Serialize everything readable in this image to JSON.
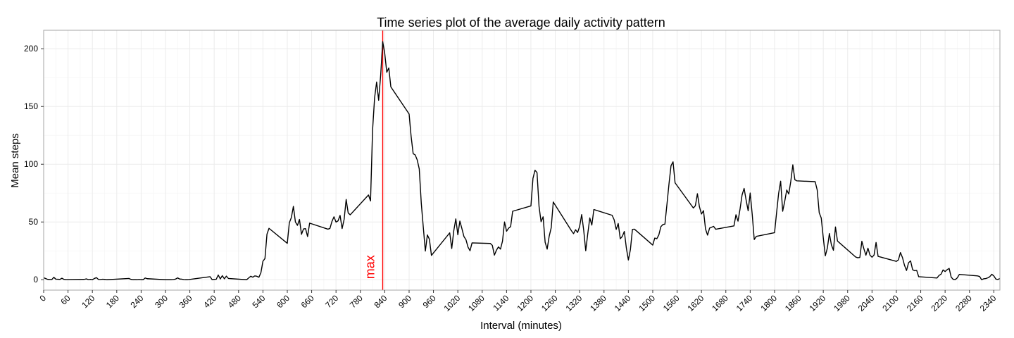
{
  "chart_data": {
    "type": "line",
    "title": "Time series plot of the average daily activity pattern",
    "xlabel": "Interval (minutes)",
    "ylabel": "Mean steps",
    "xlim": [
      0,
      2355
    ],
    "ylim": [
      -9,
      216
    ],
    "xticks": [
      0,
      60,
      120,
      180,
      240,
      300,
      360,
      420,
      480,
      540,
      600,
      660,
      720,
      780,
      840,
      900,
      960,
      1020,
      1080,
      1140,
      1200,
      1260,
      1320,
      1380,
      1440,
      1500,
      1560,
      1620,
      1680,
      1740,
      1800,
      1860,
      1920,
      1980,
      2040,
      2100,
      2160,
      2220,
      2280,
      2340
    ],
    "yticks": [
      0,
      50,
      100,
      150,
      200
    ],
    "grid": true,
    "series": [
      {
        "points": [
          [
            0,
            1.7
          ],
          [
            10,
            0.3
          ],
          [
            20,
            0.1
          ],
          [
            25,
            2.1
          ],
          [
            30,
            0.5
          ],
          [
            40,
            0.3
          ],
          [
            45,
            1.3
          ],
          [
            50,
            0.3
          ],
          [
            55,
            0.1
          ],
          [
            100,
            0.3
          ],
          [
            105,
            0.7
          ],
          [
            110,
            0.1
          ],
          [
            115,
            0.3
          ],
          [
            120,
            0
          ],
          [
            125,
            1.1
          ],
          [
            130,
            1.8
          ],
          [
            135,
            0.2
          ],
          [
            140,
            0.2
          ],
          [
            145,
            0.4
          ],
          [
            150,
            0.3
          ],
          [
            155,
            0
          ],
          [
            210,
            1.1
          ],
          [
            215,
            0.3
          ],
          [
            220,
            0
          ],
          [
            225,
            0.1
          ],
          [
            230,
            0
          ],
          [
            235,
            0.2
          ],
          [
            240,
            0
          ],
          [
            245,
            0
          ],
          [
            250,
            1.5
          ],
          [
            255,
            0.9
          ],
          [
            300,
            0
          ],
          [
            305,
            0
          ],
          [
            310,
            0
          ],
          [
            315,
            0
          ],
          [
            320,
            0.2
          ],
          [
            325,
            0.6
          ],
          [
            330,
            1.6
          ],
          [
            335,
            0.6
          ],
          [
            340,
            0.5
          ],
          [
            345,
            0.1
          ],
          [
            350,
            0
          ],
          [
            355,
            0
          ],
          [
            410,
            2.6
          ],
          [
            415,
            0
          ],
          [
            420,
            0.3
          ],
          [
            425,
            0.4
          ],
          [
            430,
            4.1
          ],
          [
            435,
            0.7
          ],
          [
            440,
            3.5
          ],
          [
            445,
            0.8
          ],
          [
            450,
            3.1
          ],
          [
            455,
            1.1
          ],
          [
            500,
            0
          ],
          [
            505,
            1.6
          ],
          [
            510,
            3
          ],
          [
            515,
            2.2
          ],
          [
            520,
            3.3
          ],
          [
            525,
            3
          ],
          [
            530,
            2.1
          ],
          [
            535,
            6.1
          ],
          [
            540,
            16
          ],
          [
            545,
            18.3
          ],
          [
            550,
            39.5
          ],
          [
            555,
            44.5
          ],
          [
            600,
            31.5
          ],
          [
            605,
            49.3
          ],
          [
            610,
            53.8
          ],
          [
            615,
            63.5
          ],
          [
            620,
            50
          ],
          [
            625,
            47.1
          ],
          [
            630,
            52.2
          ],
          [
            635,
            39.3
          ],
          [
            640,
            44
          ],
          [
            645,
            44.2
          ],
          [
            650,
            37.4
          ],
          [
            655,
            49
          ],
          [
            700,
            43.8
          ],
          [
            705,
            44.4
          ],
          [
            710,
            50.5
          ],
          [
            715,
            54.5
          ],
          [
            720,
            49.9
          ],
          [
            725,
            51
          ],
          [
            730,
            55.7
          ],
          [
            735,
            44.3
          ],
          [
            740,
            52.3
          ],
          [
            745,
            69.5
          ],
          [
            750,
            57.8
          ],
          [
            755,
            56.2
          ],
          [
            800,
            73.4
          ],
          [
            805,
            68.2
          ],
          [
            810,
            129.4
          ],
          [
            815,
            157.5
          ],
          [
            820,
            171.2
          ],
          [
            825,
            155.4
          ],
          [
            830,
            177.3
          ],
          [
            835,
            206.2
          ],
          [
            840,
            195.9
          ],
          [
            845,
            179.6
          ],
          [
            850,
            183.4
          ],
          [
            855,
            167
          ],
          [
            900,
            143.5
          ],
          [
            905,
            124
          ],
          [
            910,
            109.1
          ],
          [
            915,
            108.1
          ],
          [
            920,
            103.7
          ],
          [
            925,
            95.9
          ],
          [
            930,
            66.2
          ],
          [
            935,
            45.2
          ],
          [
            940,
            24.8
          ],
          [
            945,
            38.8
          ],
          [
            950,
            35
          ],
          [
            955,
            21.1
          ],
          [
            1000,
            40.6
          ],
          [
            1005,
            27
          ],
          [
            1010,
            42.4
          ],
          [
            1015,
            52.7
          ],
          [
            1020,
            38.9
          ],
          [
            1025,
            50.8
          ],
          [
            1030,
            44.3
          ],
          [
            1035,
            37.4
          ],
          [
            1040,
            34.7
          ],
          [
            1045,
            28.3
          ],
          [
            1050,
            25.1
          ],
          [
            1055,
            31.9
          ],
          [
            1100,
            31.4
          ],
          [
            1105,
            29.7
          ],
          [
            1110,
            21.3
          ],
          [
            1115,
            25.5
          ],
          [
            1120,
            28.4
          ],
          [
            1125,
            26.5
          ],
          [
            1130,
            33.4
          ],
          [
            1135,
            50
          ],
          [
            1140,
            42
          ],
          [
            1145,
            44.6
          ],
          [
            1150,
            46
          ],
          [
            1155,
            59.3
          ],
          [
            1200,
            63.9
          ],
          [
            1205,
            87.7
          ],
          [
            1210,
            94.8
          ],
          [
            1215,
            92.8
          ],
          [
            1220,
            63.4
          ],
          [
            1225,
            50.2
          ],
          [
            1230,
            54.5
          ],
          [
            1235,
            32.4
          ],
          [
            1240,
            26.5
          ],
          [
            1245,
            37.7
          ],
          [
            1250,
            45.1
          ],
          [
            1255,
            67.3
          ],
          [
            1300,
            42.3
          ],
          [
            1305,
            39.9
          ],
          [
            1310,
            43.3
          ],
          [
            1315,
            40.9
          ],
          [
            1320,
            46.2
          ],
          [
            1325,
            56.4
          ],
          [
            1330,
            42.8
          ],
          [
            1335,
            25.1
          ],
          [
            1340,
            39.9
          ],
          [
            1345,
            53.5
          ],
          [
            1350,
            47.3
          ],
          [
            1355,
            60.8
          ],
          [
            1400,
            55.8
          ],
          [
            1405,
            51.9
          ],
          [
            1410,
            43.6
          ],
          [
            1415,
            48.7
          ],
          [
            1420,
            35.5
          ],
          [
            1425,
            37.5
          ],
          [
            1430,
            41.8
          ],
          [
            1435,
            27.5
          ],
          [
            1440,
            17.1
          ],
          [
            1445,
            26.1
          ],
          [
            1450,
            43.6
          ],
          [
            1455,
            43.8
          ],
          [
            1500,
            30
          ],
          [
            1505,
            36.1
          ],
          [
            1510,
            35.5
          ],
          [
            1515,
            38.8
          ],
          [
            1520,
            45.9
          ],
          [
            1525,
            47.8
          ],
          [
            1530,
            48.1
          ],
          [
            1535,
            65.3
          ],
          [
            1540,
            82.9
          ],
          [
            1545,
            98.7
          ],
          [
            1550,
            102.1
          ],
          [
            1555,
            83.9
          ],
          [
            1600,
            62.1
          ],
          [
            1605,
            64.1
          ],
          [
            1610,
            74.5
          ],
          [
            1615,
            63.2
          ],
          [
            1620,
            56.9
          ],
          [
            1625,
            59.8
          ],
          [
            1630,
            43.9
          ],
          [
            1635,
            38.6
          ],
          [
            1640,
            44.7
          ],
          [
            1645,
            45.5
          ],
          [
            1650,
            46.2
          ],
          [
            1655,
            43.7
          ],
          [
            1700,
            46.6
          ],
          [
            1705,
            56.3
          ],
          [
            1710,
            50.7
          ],
          [
            1715,
            61.2
          ],
          [
            1720,
            73.4
          ],
          [
            1725,
            79.1
          ],
          [
            1730,
            68.9
          ],
          [
            1735,
            59.7
          ],
          [
            1740,
            75.1
          ],
          [
            1745,
            56.5
          ],
          [
            1750,
            34.8
          ],
          [
            1755,
            37.5
          ],
          [
            1800,
            40.7
          ],
          [
            1805,
            58
          ],
          [
            1810,
            74.7
          ],
          [
            1815,
            85.3
          ],
          [
            1820,
            59.3
          ],
          [
            1825,
            67.8
          ],
          [
            1830,
            77.7
          ],
          [
            1835,
            74.2
          ],
          [
            1840,
            85.3
          ],
          [
            1845,
            99.5
          ],
          [
            1850,
            86.6
          ],
          [
            1855,
            85.6
          ],
          [
            1900,
            84.9
          ],
          [
            1905,
            77.8
          ],
          [
            1910,
            58
          ],
          [
            1915,
            53.4
          ],
          [
            1920,
            36.3
          ],
          [
            1925,
            20.7
          ],
          [
            1930,
            27.4
          ],
          [
            1935,
            40
          ],
          [
            1940,
            30.2
          ],
          [
            1945,
            25.5
          ],
          [
            1950,
            45.7
          ],
          [
            1955,
            33.5
          ],
          [
            2000,
            19.6
          ],
          [
            2005,
            19
          ],
          [
            2010,
            19.3
          ],
          [
            2015,
            33.3
          ],
          [
            2020,
            26.8
          ],
          [
            2025,
            21.2
          ],
          [
            2030,
            27.3
          ],
          [
            2035,
            21.3
          ],
          [
            2040,
            19.5
          ],
          [
            2045,
            21.3
          ],
          [
            2050,
            32.3
          ],
          [
            2055,
            20.2
          ],
          [
            2100,
            15.9
          ],
          [
            2105,
            17.2
          ],
          [
            2110,
            23.5
          ],
          [
            2115,
            19.2
          ],
          [
            2120,
            12.5
          ],
          [
            2125,
            8
          ],
          [
            2130,
            14.7
          ],
          [
            2135,
            16.3
          ],
          [
            2140,
            8.7
          ],
          [
            2145,
            7.8
          ],
          [
            2150,
            8.1
          ],
          [
            2155,
            2.6
          ],
          [
            2200,
            1.5
          ],
          [
            2205,
            3.7
          ],
          [
            2210,
            4.8
          ],
          [
            2215,
            8.5
          ],
          [
            2220,
            7.1
          ],
          [
            2225,
            8.7
          ],
          [
            2230,
            9.8
          ],
          [
            2235,
            2.2
          ],
          [
            2240,
            0.3
          ],
          [
            2245,
            0.1
          ],
          [
            2250,
            1.6
          ],
          [
            2255,
            4.6
          ],
          [
            2300,
            3.3
          ],
          [
            2305,
            2.8
          ],
          [
            2310,
            0
          ],
          [
            2315,
            0.8
          ],
          [
            2320,
            1
          ],
          [
            2325,
            1.6
          ],
          [
            2330,
            2.6
          ],
          [
            2335,
            4.7
          ],
          [
            2340,
            3.3
          ],
          [
            2345,
            0.6
          ],
          [
            2350,
            0.2
          ],
          [
            2355,
            1.1
          ]
        ]
      }
    ],
    "annotation": {
      "x": 835,
      "label": "max",
      "color": "#ff0000"
    }
  }
}
